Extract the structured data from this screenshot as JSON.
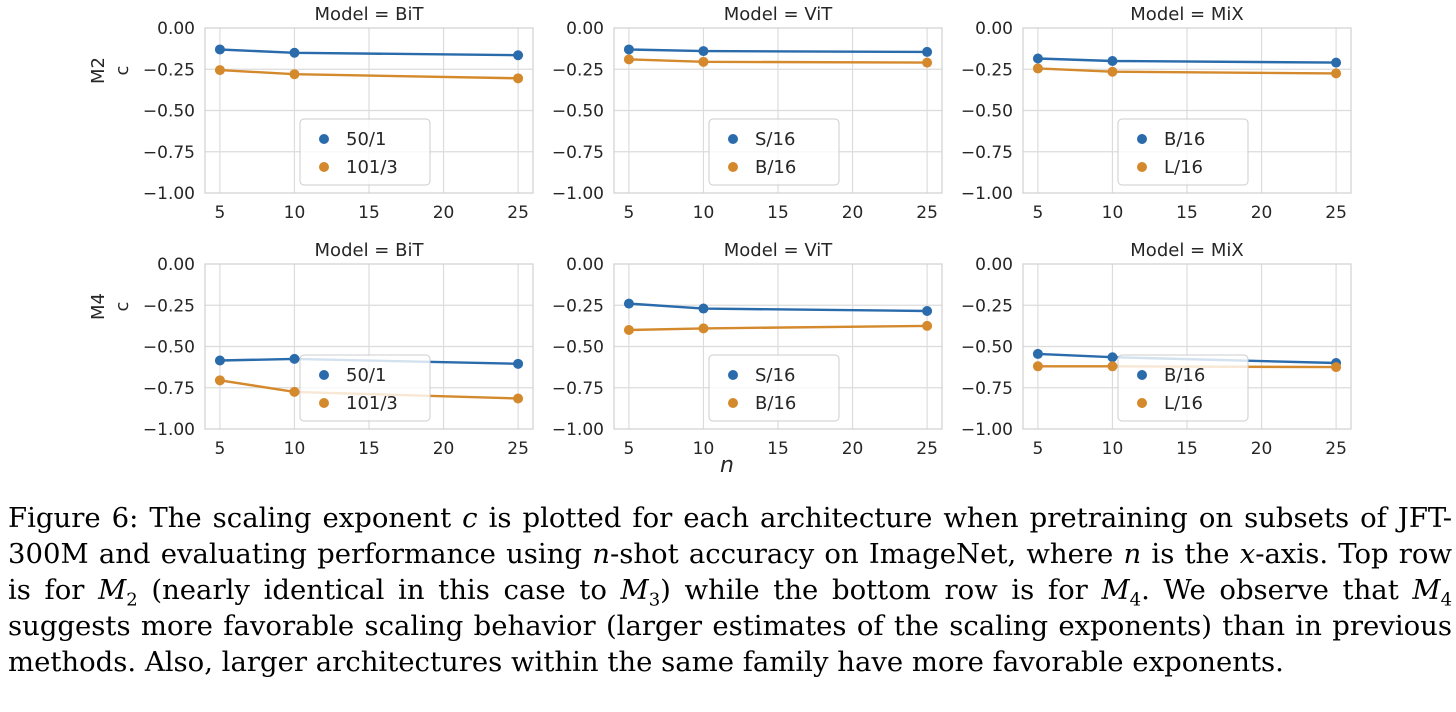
{
  "figure": {
    "x_shared_label": "n",
    "row_labels": [
      [
        "M2",
        "c"
      ],
      [
        "M4",
        "c"
      ]
    ]
  },
  "chart_data": [
    {
      "type": "line",
      "title": "Model = BiT",
      "row": "M2",
      "xlabel": "",
      "ylabel": "c",
      "x": [
        5,
        10,
        25
      ],
      "xticks": [
        5,
        10,
        15,
        20,
        25
      ],
      "ylim": [
        -1.0,
        0.0
      ],
      "yticks": [
        "0.00",
        "−0.25",
        "−0.50",
        "−0.75",
        "−1.00"
      ],
      "grid": true,
      "legend": "lower-center",
      "series": [
        {
          "name": "50/1",
          "color": "#2a6bab",
          "values": [
            -0.13,
            -0.15,
            -0.165
          ]
        },
        {
          "name": "101/3",
          "color": "#d4892c",
          "values": [
            -0.255,
            -0.28,
            -0.305
          ]
        }
      ]
    },
    {
      "type": "line",
      "title": "Model = ViT",
      "row": "M2",
      "xlabel": "",
      "ylabel": "",
      "x": [
        5,
        10,
        25
      ],
      "xticks": [
        5,
        10,
        15,
        20,
        25
      ],
      "ylim": [
        -1.0,
        0.0
      ],
      "yticks": [
        "0.00",
        "−0.25",
        "−0.50",
        "−0.75",
        "−1.00"
      ],
      "grid": true,
      "legend": "lower-center",
      "series": [
        {
          "name": "S/16",
          "color": "#2a6bab",
          "values": [
            -0.13,
            -0.14,
            -0.145
          ]
        },
        {
          "name": "B/16",
          "color": "#d4892c",
          "values": [
            -0.19,
            -0.205,
            -0.21
          ]
        }
      ]
    },
    {
      "type": "line",
      "title": "Model = MiX",
      "row": "M2",
      "xlabel": "",
      "ylabel": "",
      "x": [
        5,
        10,
        25
      ],
      "xticks": [
        5,
        10,
        15,
        20,
        25
      ],
      "ylim": [
        -1.0,
        0.0
      ],
      "yticks": [
        "0.00",
        "−0.25",
        "−0.50",
        "−0.75",
        "−1.00"
      ],
      "grid": true,
      "legend": "lower-center",
      "series": [
        {
          "name": "B/16",
          "color": "#2a6bab",
          "values": [
            -0.185,
            -0.2,
            -0.21
          ]
        },
        {
          "name": "L/16",
          "color": "#d4892c",
          "values": [
            -0.245,
            -0.265,
            -0.275
          ]
        }
      ]
    },
    {
      "type": "line",
      "title": "Model = BiT",
      "row": "M4",
      "xlabel": "",
      "ylabel": "c",
      "x": [
        5,
        10,
        25
      ],
      "xticks": [
        5,
        10,
        15,
        20,
        25
      ],
      "ylim": [
        -1.0,
        0.0
      ],
      "yticks": [
        "0.00",
        "−0.25",
        "−0.50",
        "−0.75",
        "−1.00"
      ],
      "grid": true,
      "legend": "lower-center",
      "series": [
        {
          "name": "50/1",
          "color": "#2a6bab",
          "values": [
            -0.585,
            -0.575,
            -0.605
          ]
        },
        {
          "name": "101/3",
          "color": "#d4892c",
          "values": [
            -0.705,
            -0.775,
            -0.815
          ]
        }
      ]
    },
    {
      "type": "line",
      "title": "Model = ViT",
      "row": "M4",
      "xlabel": "n",
      "ylabel": "",
      "x": [
        5,
        10,
        25
      ],
      "xticks": [
        5,
        10,
        15,
        20,
        25
      ],
      "ylim": [
        -1.0,
        0.0
      ],
      "yticks": [
        "0.00",
        "−0.25",
        "−0.50",
        "−0.75",
        "−1.00"
      ],
      "grid": true,
      "legend": "lower-center",
      "series": [
        {
          "name": "S/16",
          "color": "#2a6bab",
          "values": [
            -0.24,
            -0.27,
            -0.285
          ]
        },
        {
          "name": "B/16",
          "color": "#d4892c",
          "values": [
            -0.4,
            -0.39,
            -0.375
          ]
        }
      ]
    },
    {
      "type": "line",
      "title": "Model = MiX",
      "row": "M4",
      "xlabel": "",
      "ylabel": "",
      "x": [
        5,
        10,
        25
      ],
      "xticks": [
        5,
        10,
        15,
        20,
        25
      ],
      "ylim": [
        -1.0,
        0.0
      ],
      "yticks": [
        "0.00",
        "−0.25",
        "−0.50",
        "−0.75",
        "−1.00"
      ],
      "grid": true,
      "legend": "lower-center",
      "series": [
        {
          "name": "B/16",
          "color": "#2a6bab",
          "values": [
            -0.545,
            -0.565,
            -0.6
          ]
        },
        {
          "name": "L/16",
          "color": "#d4892c",
          "values": [
            -0.62,
            -0.62,
            -0.625
          ]
        }
      ]
    }
  ],
  "caption": {
    "t1": "Figure 6: The scaling exponent ",
    "v_c": "c",
    "t2": " is plotted for each architecture when pretraining on subsets of JFT-300M and evaluating performance using ",
    "v_n1": "n",
    "t3": "-shot accuracy on ImageNet, where ",
    "v_n2": "n",
    "t4": " is the ",
    "v_x": "x",
    "t5": "-axis. Top row is for ",
    "m2_sym": "M",
    "m2_sub": "2",
    "t6": " (nearly identical in this case to ",
    "m3_sym": "M",
    "m3_sub": "3",
    "t7": ") while the bottom row is for ",
    "m4a_sym": "M",
    "m4a_sub": "4",
    "t8": ". We observe that ",
    "m4b_sym": "M",
    "m4b_sub": "4",
    "t9": " suggests more favorable scaling behavior (larger estimates of the scaling exponents) than in previous methods. Also, larger architectures within the same family have more favorable exponents."
  }
}
